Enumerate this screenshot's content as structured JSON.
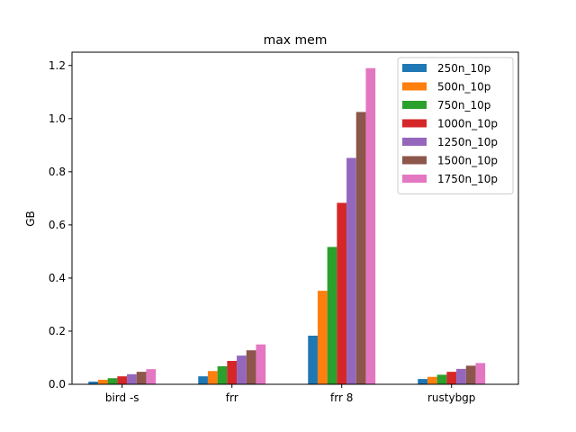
{
  "chart_data": {
    "type": "bar",
    "title": "max mem",
    "xlabel": "",
    "ylabel": "GB",
    "ylim": [
      0,
      1.25
    ],
    "yticks": [
      "0.0",
      "0.2",
      "0.4",
      "0.6",
      "0.8",
      "1.0",
      "1.2"
    ],
    "ytick_values": [
      0,
      0.2,
      0.4,
      0.6,
      0.8,
      1.0,
      1.2
    ],
    "grid": false,
    "legend_position": "top-right",
    "categories": [
      "bird -s",
      "frr",
      "frr 8",
      "rustybgp"
    ],
    "series": [
      {
        "name": "250n_10p",
        "color": "#1f77b4",
        "values": [
          0.01,
          0.03,
          0.183,
          0.02
        ]
      },
      {
        "name": "500n_10p",
        "color": "#ff7f0e",
        "values": [
          0.017,
          0.05,
          0.352,
          0.028
        ]
      },
      {
        "name": "750n_10p",
        "color": "#2ca02c",
        "values": [
          0.023,
          0.068,
          0.517,
          0.036
        ]
      },
      {
        "name": "1000n_10p",
        "color": "#d62728",
        "values": [
          0.03,
          0.088,
          0.683,
          0.047
        ]
      },
      {
        "name": "1250n_10p",
        "color": "#9467bd",
        "values": [
          0.038,
          0.108,
          0.852,
          0.058
        ]
      },
      {
        "name": "1500n_10p",
        "color": "#8c564b",
        "values": [
          0.047,
          0.128,
          1.025,
          0.07
        ]
      },
      {
        "name": "1750n_10p",
        "color": "#e377c2",
        "values": [
          0.057,
          0.15,
          1.19,
          0.08
        ]
      }
    ]
  }
}
